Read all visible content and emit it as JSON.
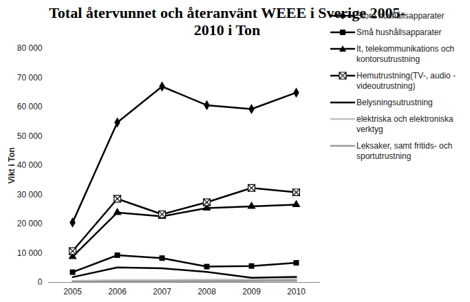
{
  "chart_data": {
    "type": "line",
    "title": "Total återvunnet och återanvänt WEEE i Sverige 2005-2010 i Ton",
    "y_label": "Vikt i Ton",
    "x": [
      2005,
      2006,
      2007,
      2008,
      2009,
      2010
    ],
    "ylim": [
      0,
      80000
    ],
    "yticks": [
      0,
      {
        "value": 10000,
        "label": "10 000"
      },
      {
        "value": 20000,
        "label": "20 000"
      },
      {
        "value": 30000,
        "label": "30 000"
      },
      {
        "value": 40000,
        "label": "40 000"
      },
      {
        "value": 50000,
        "label": "50 000"
      },
      {
        "value": 60000,
        "label": "60 000"
      },
      {
        "value": 70000,
        "label": "70 000"
      },
      {
        "value": 80000,
        "label": "80 000"
      }
    ],
    "grid": false,
    "legend": "right",
    "series": [
      {
        "name": "Stora hushållsapparater",
        "color": "#000000",
        "marker": "diamond",
        "values": [
          20500,
          54700,
          67000,
          60600,
          59300,
          64900
        ]
      },
      {
        "name": "Små hushållsapparater",
        "color": "#000000",
        "marker": "square",
        "values": [
          3500,
          9300,
          8300,
          5400,
          5600,
          6700
        ]
      },
      {
        "name": "It, telekommunikations och kontorsutrustning",
        "color": "#000000",
        "marker": "triangle",
        "values": [
          8800,
          23900,
          22600,
          25400,
          26000,
          26600
        ]
      },
      {
        "name": "Hemutrustning(TV-, audio - videoutrustning)",
        "color": "#000000",
        "marker": "square_x",
        "values": [
          10700,
          28600,
          23300,
          27400,
          32300,
          30800
        ]
      },
      {
        "name": "Belysningsutrustning",
        "color": "#000000",
        "marker": "none",
        "values": [
          1800,
          5100,
          4800,
          3600,
          1600,
          1900
        ]
      },
      {
        "name": "elektriska och elektroniska verktyg",
        "color": "#c0c0c0",
        "marker": "none",
        "values": [
          500,
          700,
          700,
          900,
          900,
          1200
        ]
      },
      {
        "name": "Leksaker, samt fritids- och sportutrustning",
        "color": "#9a9a9a",
        "marker": "none",
        "values": [
          100,
          300,
          300,
          400,
          500,
          600
        ]
      }
    ]
  }
}
